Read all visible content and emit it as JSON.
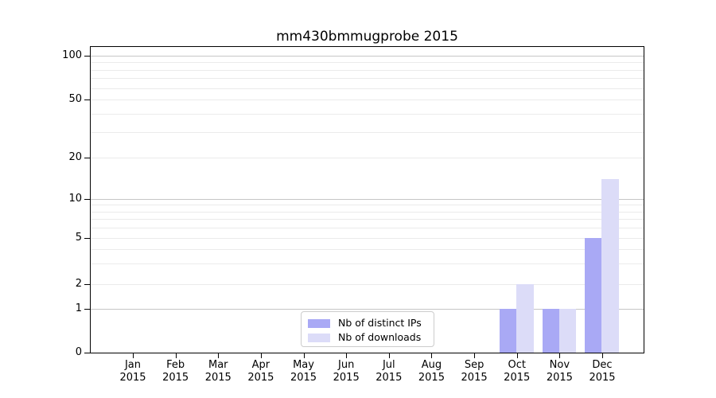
{
  "window": {
    "background": "#ffffff"
  },
  "chart_data": {
    "type": "bar",
    "title": "mm430bmmugprobe 2015",
    "categories": [
      "Jan 2015",
      "Feb 2015",
      "Mar 2015",
      "Apr 2015",
      "May 2015",
      "Jun 2015",
      "Jul 2015",
      "Aug 2015",
      "Sep 2015",
      "Oct 2015",
      "Nov 2015",
      "Dec 2015"
    ],
    "x_tick_months": [
      "Jan",
      "Feb",
      "Mar",
      "Apr",
      "May",
      "Jun",
      "Jul",
      "Aug",
      "Sep",
      "Oct",
      "Nov",
      "Dec"
    ],
    "x_tick_year": "2015",
    "series": [
      {
        "name": "Nb of distinct IPs",
        "color": "#a9a9f5",
        "values": [
          0,
          0,
          0,
          0,
          0,
          0,
          0,
          0,
          0,
          1,
          1,
          5
        ]
      },
      {
        "name": "Nb of downloads",
        "color": "#dcdcf8",
        "values": [
          0,
          0,
          0,
          0,
          0,
          0,
          0,
          0,
          0,
          2,
          1,
          14
        ]
      }
    ],
    "y_axis": {
      "scale": "symlog",
      "tick_labels": [
        0,
        1,
        2,
        5,
        10,
        20,
        50,
        100
      ],
      "major_gridlines": [
        1,
        10,
        100
      ],
      "minor_gridlines": [
        2,
        3,
        4,
        5,
        6,
        7,
        8,
        9,
        20,
        30,
        40,
        50,
        60,
        70,
        80,
        90
      ],
      "ylim": [
        0,
        115
      ]
    },
    "legend": {
      "position": "lower center",
      "entries": [
        "Nb of distinct IPs",
        "Nb of downloads"
      ]
    },
    "colors": {
      "bar_distinct_ips": "#a9a9f5",
      "bar_downloads": "#dcdcf8",
      "major_gridline": "#c6c6c6",
      "minor_gridline": "#ebebeb",
      "spine": "#000000",
      "legend_border": "#cccccc",
      "background": "#ffffff"
    }
  }
}
